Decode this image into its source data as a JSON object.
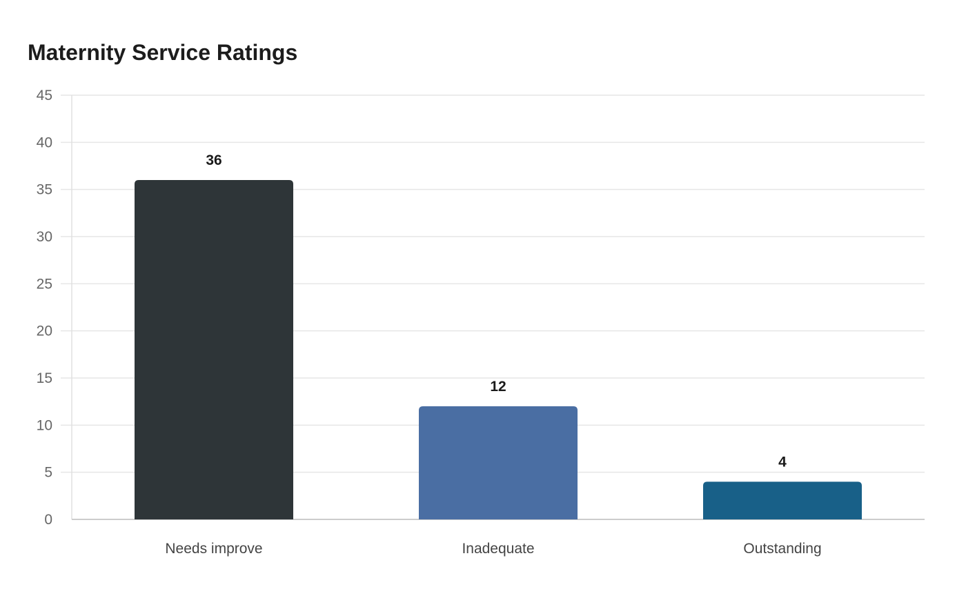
{
  "chart_data": {
    "type": "bar",
    "title": "Maternity Service Ratings",
    "xlabel": "",
    "ylabel": "",
    "categories": [
      "Needs improve",
      "Inadequate",
      "Outstanding"
    ],
    "values": [
      36,
      12,
      4
    ],
    "ylim": [
      0,
      45
    ],
    "yticks": [
      0,
      5,
      10,
      15,
      20,
      25,
      30,
      35,
      40,
      45
    ],
    "colors": [
      "#2e3538",
      "#4a6ea3",
      "#186088"
    ],
    "grid": true,
    "legend": "none",
    "data_labels": true
  }
}
